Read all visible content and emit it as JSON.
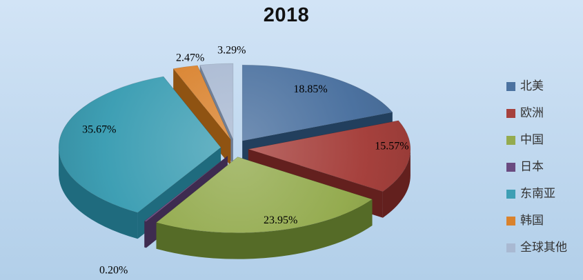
{
  "chart_data": {
    "type": "pie",
    "style": "3d-exploded",
    "title": "2018",
    "unit": "%",
    "legend_position": "right",
    "slices": [
      {
        "label": "北美",
        "value": 18.85,
        "value_label": "18.85%",
        "color": "#4C72A0",
        "side_color": "#223F5D"
      },
      {
        "label": "欧洲",
        "value": 15.57,
        "value_label": "15.57%",
        "color": "#A6413D",
        "side_color": "#63201E"
      },
      {
        "label": "中国",
        "value": 23.95,
        "value_label": "23.95%",
        "color": "#94AB4F",
        "side_color": "#556B27"
      },
      {
        "label": "日本",
        "value": 0.2,
        "value_label": "0.20%",
        "color": "#6A4B80",
        "side_color": "#3E2B50"
      },
      {
        "label": "东南亚",
        "value": 35.67,
        "value_label": "35.67%",
        "color": "#3E9FB4",
        "side_color": "#1F6B7E"
      },
      {
        "label": "韩国",
        "value": 2.47,
        "value_label": "2.47%",
        "color": "#D9822D",
        "side_color": "#8F5312"
      },
      {
        "label": "全球其他",
        "value": 3.29,
        "value_label": "3.29%",
        "color": "#A9B9D2",
        "side_color": "#707F96"
      }
    ]
  }
}
